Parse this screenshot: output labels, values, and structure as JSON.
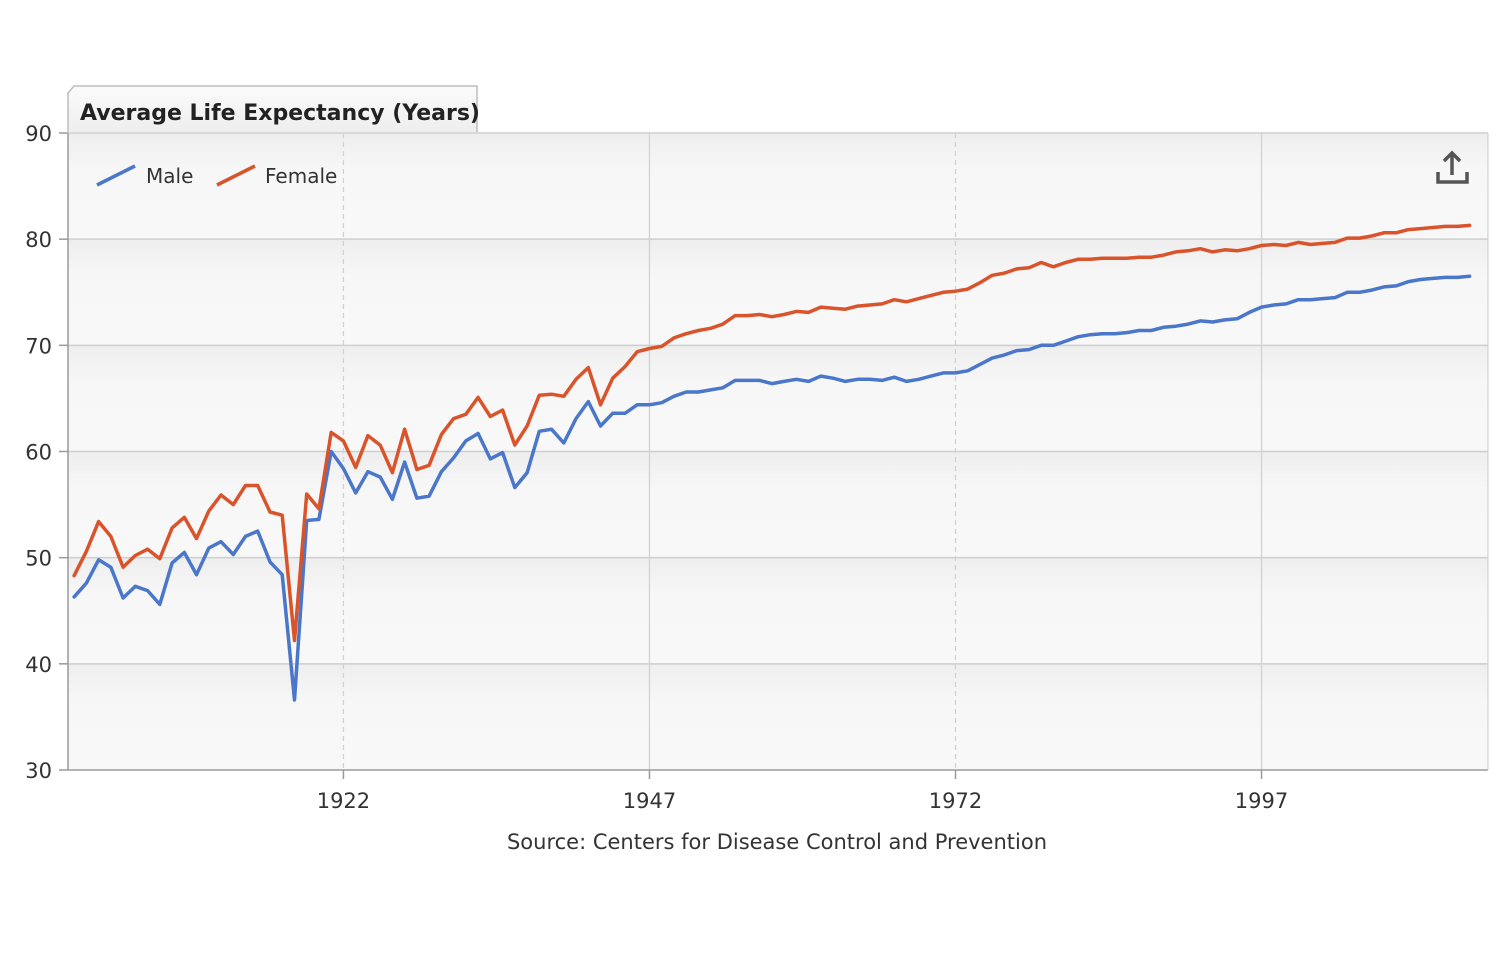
{
  "chart_data": {
    "type": "line",
    "title": "Average Life Expectancy (Years)",
    "caption": "Source: Centers for Disease Control and Prevention",
    "xlabel": "",
    "ylabel": "",
    "ylim": [
      30,
      90
    ],
    "yticks": [
      30,
      40,
      50,
      60,
      70,
      80,
      90
    ],
    "xlim": [
      1899.5,
      2015.5
    ],
    "xticks": [
      1922,
      1947,
      1972,
      1997
    ],
    "legend_position": "top-left",
    "x": [
      1900,
      1901,
      1902,
      1903,
      1904,
      1905,
      1906,
      1907,
      1908,
      1909,
      1910,
      1911,
      1912,
      1913,
      1914,
      1915,
      1916,
      1917,
      1918,
      1919,
      1920,
      1921,
      1922,
      1923,
      1924,
      1925,
      1926,
      1927,
      1928,
      1929,
      1930,
      1931,
      1932,
      1933,
      1934,
      1935,
      1936,
      1937,
      1938,
      1939,
      1940,
      1941,
      1942,
      1943,
      1944,
      1945,
      1946,
      1947,
      1948,
      1949,
      1950,
      1951,
      1952,
      1953,
      1954,
      1955,
      1956,
      1957,
      1958,
      1959,
      1960,
      1961,
      1962,
      1963,
      1964,
      1965,
      1966,
      1967,
      1968,
      1969,
      1970,
      1971,
      1972,
      1973,
      1974,
      1975,
      1976,
      1977,
      1978,
      1979,
      1980,
      1981,
      1982,
      1983,
      1984,
      1985,
      1986,
      1987,
      1988,
      1989,
      1990,
      1991,
      1992,
      1993,
      1994,
      1995,
      1996,
      1997,
      1998,
      1999,
      2000,
      2001,
      2002,
      2003,
      2004,
      2005,
      2006,
      2007,
      2008,
      2009,
      2010,
      2011,
      2012,
      2013,
      2014
    ],
    "series": [
      {
        "name": "Male",
        "color": "#4a77c9",
        "values": [
          46.3,
          47.6,
          49.8,
          49.1,
          46.2,
          47.3,
          46.9,
          45.6,
          49.5,
          50.5,
          48.4,
          50.9,
          51.5,
          50.3,
          52.0,
          52.5,
          49.6,
          48.4,
          36.6,
          53.5,
          53.6,
          60.0,
          58.4,
          56.1,
          58.1,
          57.6,
          55.5,
          59.0,
          55.6,
          55.8,
          58.1,
          59.4,
          61.0,
          61.7,
          59.3,
          59.9,
          56.6,
          58.0,
          61.9,
          62.1,
          60.8,
          63.1,
          64.7,
          62.4,
          63.6,
          63.6,
          64.4,
          64.4,
          64.6,
          65.2,
          65.6,
          65.6,
          65.8,
          66.0,
          66.7,
          66.7,
          66.7,
          66.4,
          66.6,
          66.8,
          66.6,
          67.1,
          66.9,
          66.6,
          66.8,
          66.8,
          66.7,
          67.0,
          66.6,
          66.8,
          67.1,
          67.4,
          67.4,
          67.6,
          68.2,
          68.8,
          69.1,
          69.5,
          69.6,
          70.0,
          70.0,
          70.4,
          70.8,
          71.0,
          71.1,
          71.1,
          71.2,
          71.4,
          71.4,
          71.7,
          71.8,
          72.0,
          72.3,
          72.2,
          72.4,
          72.5,
          73.1,
          73.6,
          73.8,
          73.9,
          74.3,
          74.3,
          74.4,
          74.5,
          75.0,
          75.0,
          75.2,
          75.5,
          75.6,
          76.0,
          76.2,
          76.3,
          76.4,
          76.4,
          76.5
        ]
      },
      {
        "name": "Female",
        "color": "#d9532b",
        "values": [
          48.3,
          50.6,
          53.4,
          52.0,
          49.1,
          50.2,
          50.8,
          49.9,
          52.8,
          53.8,
          51.8,
          54.4,
          55.9,
          55.0,
          56.8,
          56.8,
          54.3,
          54.0,
          42.2,
          56.0,
          54.6,
          61.8,
          61.0,
          58.5,
          61.5,
          60.6,
          58.0,
          62.1,
          58.3,
          58.7,
          61.6,
          63.1,
          63.5,
          65.1,
          63.3,
          63.9,
          60.6,
          62.4,
          65.3,
          65.4,
          65.2,
          66.8,
          67.9,
          64.4,
          66.9,
          68.0,
          69.4,
          69.7,
          69.9,
          70.7,
          71.1,
          71.4,
          71.6,
          72.0,
          72.8,
          72.8,
          72.9,
          72.7,
          72.9,
          73.2,
          73.1,
          73.6,
          73.5,
          73.4,
          73.7,
          73.8,
          73.9,
          74.3,
          74.1,
          74.4,
          74.7,
          75.0,
          75.1,
          75.3,
          75.9,
          76.6,
          76.8,
          77.2,
          77.3,
          77.8,
          77.4,
          77.8,
          78.1,
          78.1,
          78.2,
          78.2,
          78.2,
          78.3,
          78.3,
          78.5,
          78.8,
          78.9,
          79.1,
          78.8,
          79.0,
          78.9,
          79.1,
          79.4,
          79.5,
          79.4,
          79.7,
          79.5,
          79.6,
          79.7,
          80.1,
          80.1,
          80.3,
          80.6,
          80.6,
          80.9,
          81.0,
          81.1,
          81.2,
          81.2,
          81.3
        ]
      }
    ],
    "export_icon": "share-upload-icon"
  }
}
